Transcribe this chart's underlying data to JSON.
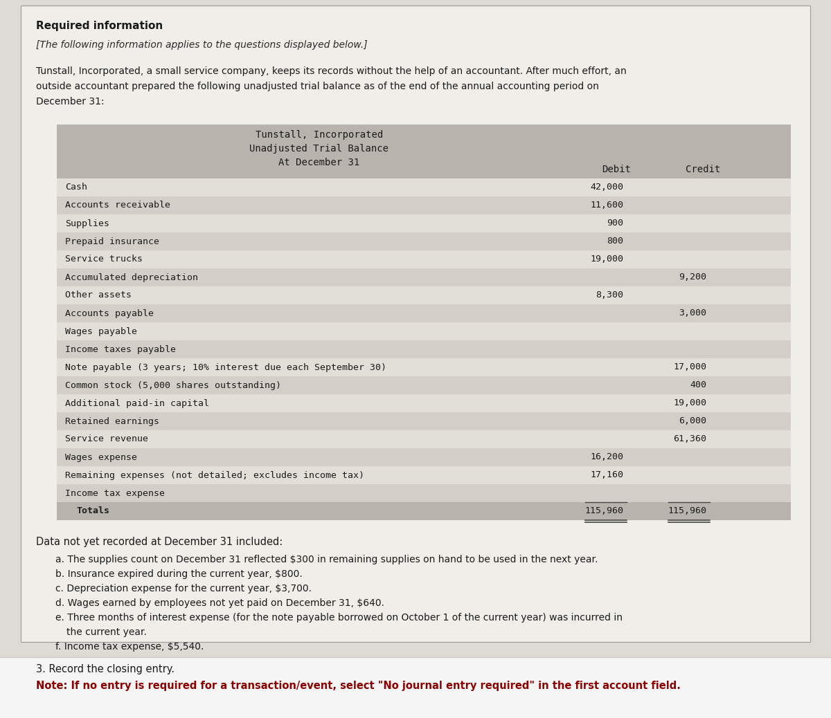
{
  "page_bg": "#dedad5",
  "card_bg": "#f0eee9",
  "title_bold": "Required information",
  "subtitle_italic": "[The following information applies to the questions displayed below.]",
  "intro_lines": [
    "Tunstall, Incorporated, a small service company, keeps its records without the help of an accountant. After much effort, an",
    "outside accountant prepared the following unadjusted trial balance as of the end of the annual accounting period on",
    "December 31:"
  ],
  "table_header_line1": "Tunstall, Incorporated",
  "table_header_line2": "Unadjusted Trial Balance",
  "table_header_line3": "At December 31",
  "col_debit": "Debit",
  "col_credit": "Credit",
  "table_rows": [
    {
      "label": "Cash",
      "debit": "42,000",
      "credit": "",
      "indent": false
    },
    {
      "label": "Accounts receivable",
      "debit": "11,600",
      "credit": "",
      "indent": false
    },
    {
      "label": "Supplies",
      "debit": "900",
      "credit": "",
      "indent": false
    },
    {
      "label": "Prepaid insurance",
      "debit": "800",
      "credit": "",
      "indent": false
    },
    {
      "label": "Service trucks",
      "debit": "19,000",
      "credit": "",
      "indent": false
    },
    {
      "label": "Accumulated depreciation",
      "debit": "",
      "credit": "9,200",
      "indent": false
    },
    {
      "label": "Other assets",
      "debit": "8,300",
      "credit": "",
      "indent": false
    },
    {
      "label": "Accounts payable",
      "debit": "",
      "credit": "3,000",
      "indent": false
    },
    {
      "label": "Wages payable",
      "debit": "",
      "credit": "",
      "indent": false
    },
    {
      "label": "Income taxes payable",
      "debit": "",
      "credit": "",
      "indent": false
    },
    {
      "label": "Note payable (3 years; 10% interest due each September 30)",
      "debit": "",
      "credit": "17,000",
      "indent": false
    },
    {
      "label": "Common stock (5,000 shares outstanding)",
      "debit": "",
      "credit": "400",
      "indent": false
    },
    {
      "label": "Additional paid-in capital",
      "debit": "",
      "credit": "19,000",
      "indent": false
    },
    {
      "label": "Retained earnings",
      "debit": "",
      "credit": "6,000",
      "indent": false
    },
    {
      "label": "Service revenue",
      "debit": "",
      "credit": "61,360",
      "indent": false
    },
    {
      "label": "Wages expense",
      "debit": "16,200",
      "credit": "",
      "indent": false
    },
    {
      "label": "Remaining expenses (not detailed; excludes income tax)",
      "debit": "17,160",
      "credit": "",
      "indent": false
    },
    {
      "label": "Income tax expense",
      "debit": "",
      "credit": "",
      "indent": false
    },
    {
      "label": "Totals",
      "debit": "115,960",
      "credit": "115,960",
      "indent": true,
      "is_total": true
    }
  ],
  "data_section_title": "Data not yet recorded at December 31 included:",
  "data_items": [
    {
      "prefix": "a.",
      "text": " The supplies count on December 31 reflected $300 in remaining supplies on hand to be used in the next year."
    },
    {
      "prefix": "b.",
      "text": " Insurance expired during the current year, $800."
    },
    {
      "prefix": "c.",
      "text": " Depreciation expense for the current year, $3,700."
    },
    {
      "prefix": "d.",
      "text": " Wages earned by employees not yet paid on December 31, $640."
    },
    {
      "prefix": "e.",
      "text": " Three months of interest expense (for the note payable borrowed on October 1 of the current year) was incurred in"
    },
    {
      "prefix": "",
      "text": "   the current year."
    },
    {
      "prefix": "f.",
      "text": " Income tax expense, $5,540."
    }
  ],
  "footer_line1": "3. Record the closing entry.",
  "footer_line2": "Note: If no entry is required for a transaction/event, select \"No journal entry required\" in the first account field.",
  "table_header_bg": "#b8b4ad",
  "table_row_colors": [
    "#e2dfd9",
    "#d3cfc8"
  ],
  "footer_bg": "#f5f5f5",
  "card_border": "#999999"
}
